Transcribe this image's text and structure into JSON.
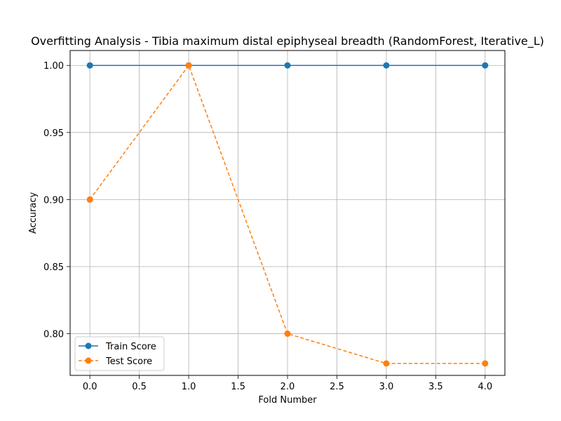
{
  "chart_data": {
    "type": "line",
    "title": "Overfitting Analysis - Tibia maximum distal epiphyseal breadth (RandomForest, Iterative_L)",
    "xlabel": "Fold Number",
    "ylabel": "Accuracy",
    "x": [
      0,
      1,
      2,
      3,
      4
    ],
    "xlim": [
      -0.2,
      4.2
    ],
    "ylim": [
      0.7689,
      1.0111
    ],
    "xticks": [
      0.0,
      0.5,
      1.0,
      1.5,
      2.0,
      2.5,
      3.0,
      3.5,
      4.0
    ],
    "xtick_labels": [
      "0.0",
      "0.5",
      "1.0",
      "1.5",
      "2.0",
      "2.5",
      "3.0",
      "3.5",
      "4.0"
    ],
    "yticks": [
      0.8,
      0.85,
      0.9,
      0.95,
      1.0
    ],
    "ytick_labels": [
      "0.80",
      "0.85",
      "0.90",
      "0.95",
      "1.00"
    ],
    "grid": true,
    "legend_position": "lower-left",
    "series": [
      {
        "name": "Train Score",
        "values": [
          1.0,
          1.0,
          1.0,
          1.0,
          1.0
        ],
        "color": "#1f77b4",
        "style": "solid",
        "marker": "circle"
      },
      {
        "name": "Test Score",
        "values": [
          0.9,
          1.0,
          0.8,
          0.7778,
          0.7778
        ],
        "color": "#ff7f0e",
        "style": "dashed",
        "marker": "circle"
      }
    ]
  }
}
